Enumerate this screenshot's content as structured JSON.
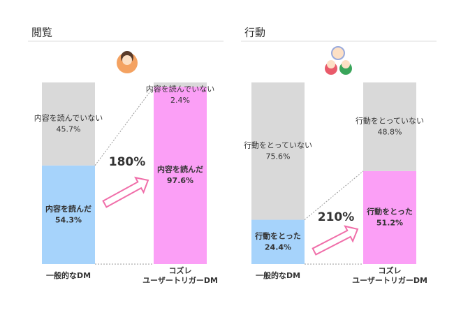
{
  "chart_data": [
    {
      "type": "bar",
      "title": "閲覧",
      "categories": [
        "一般的なDM",
        "コズレ ユーザートリガーDM"
      ],
      "series": [
        {
          "name": "内容を読んだ",
          "color": "#a6d3fb",
          "values": [
            54.3,
            97.6
          ],
          "value_labels": [
            "54.3%",
            "97.6%"
          ]
        },
        {
          "name": "内容を読んでいない",
          "color": "#d9d9d9",
          "values": [
            45.7,
            2.4
          ],
          "value_labels": [
            "45.7%",
            "2.4%"
          ]
        }
      ],
      "alt_series_color": "#fb9ff6",
      "ylim": [
        0,
        100
      ],
      "annotation": "180%",
      "annotation_color": "#f06ea9"
    },
    {
      "type": "bar",
      "title": "行動",
      "categories": [
        "一般的なDM",
        "コズレ ユーザートリガーDM"
      ],
      "series": [
        {
          "name": "行動をとった",
          "color": "#a6d3fb",
          "values": [
            24.4,
            51.2
          ],
          "value_labels": [
            "24.4%",
            "51.2%"
          ]
        },
        {
          "name": "行動をとっていない",
          "color": "#d9d9d9",
          "values": [
            75.6,
            48.8
          ],
          "value_labels": [
            "75.6%",
            "48.8%"
          ]
        }
      ],
      "alt_series_color": "#fb9ff6",
      "ylim": [
        0,
        100
      ],
      "annotation": "210%",
      "annotation_color": "#f06ea9"
    }
  ]
}
